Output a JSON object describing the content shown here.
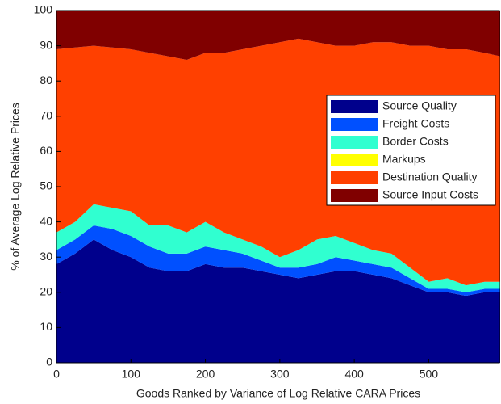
{
  "chart_data": {
    "type": "stacked-area",
    "xlabel": "Goods Ranked by Variance of Log Relative CARA Prices",
    "ylabel": "% of Average Log Relative Prices",
    "x": [
      0,
      25,
      50,
      75,
      100,
      125,
      150,
      175,
      200,
      225,
      250,
      275,
      300,
      325,
      350,
      375,
      400,
      425,
      450,
      475,
      500,
      525,
      550,
      575,
      596
    ],
    "series": [
      {
        "name": "Source Quality",
        "color": "#00008c",
        "values": [
          28,
          31,
          35,
          32,
          30,
          27,
          26,
          26,
          28,
          27,
          27,
          26,
          25,
          24,
          25,
          26,
          26,
          25,
          24,
          22,
          20,
          20,
          19,
          20,
          20
        ]
      },
      {
        "name": "Freight Costs",
        "color": "#0050ff",
        "values": [
          4,
          4,
          4,
          6,
          6,
          6,
          5,
          5,
          5,
          5,
          4,
          3,
          2,
          3,
          3,
          4,
          3,
          3,
          3,
          2,
          1,
          1,
          1,
          1,
          1
        ]
      },
      {
        "name": "Border Costs",
        "color": "#30ffd0",
        "values": [
          5,
          5,
          6,
          6,
          7,
          6,
          8,
          6,
          7,
          5,
          4,
          4,
          3,
          5,
          7,
          6,
          5,
          4,
          4,
          3,
          2,
          3,
          2,
          2,
          2
        ]
      },
      {
        "name": "Markups",
        "color": "#ffff00",
        "values": [
          0,
          0,
          0,
          0,
          0,
          0,
          0,
          0,
          0,
          0,
          0,
          0,
          0,
          0,
          0,
          0,
          0,
          0,
          0,
          0,
          0,
          0,
          0,
          0,
          0
        ]
      },
      {
        "name": "Destination Quality",
        "color": "#ff4000",
        "values": [
          52,
          49.5,
          45,
          45.5,
          46,
          49,
          48,
          49,
          48,
          51,
          54,
          57,
          61,
          60,
          56,
          54,
          56,
          59,
          60,
          63,
          67,
          65,
          67,
          65,
          64
        ]
      },
      {
        "name": "Source Input Costs",
        "color": "#800000",
        "values": [
          11,
          10.5,
          10,
          10.5,
          11,
          12,
          13,
          14,
          12,
          12,
          11,
          10,
          9,
          8,
          9,
          10,
          10,
          9,
          9,
          10,
          10,
          11,
          11,
          12,
          13
        ]
      }
    ],
    "xlim": [
      0,
      596
    ],
    "xticks": [
      0,
      100,
      200,
      300,
      400,
      500
    ],
    "ylim": [
      0,
      100
    ],
    "yticks": [
      0,
      10,
      20,
      30,
      40,
      50,
      60,
      70,
      80,
      90,
      100
    ],
    "legend": "right"
  }
}
